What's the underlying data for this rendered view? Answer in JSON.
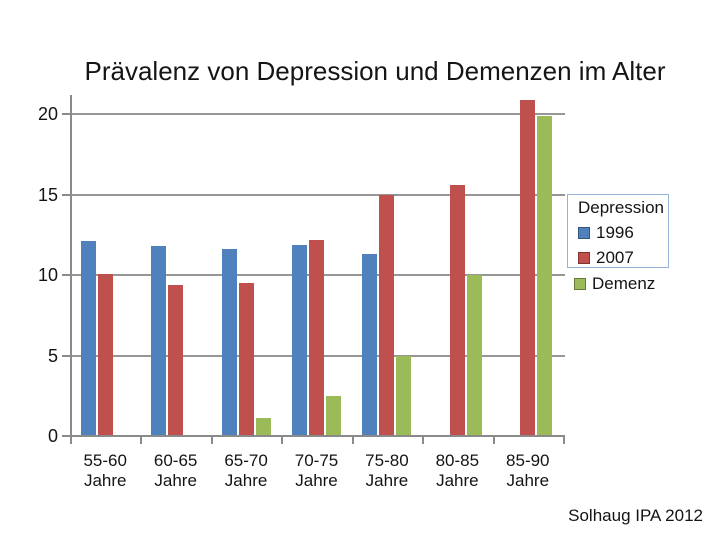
{
  "caption": "Solhaug IPA 2012",
  "legend": {
    "group_title": "Depression",
    "items": [
      {
        "label": "1996",
        "color": "#4F81BD"
      },
      {
        "label": "2007",
        "color": "#C0504D"
      }
    ],
    "demenz": {
      "label": "Demenz",
      "color": "#9BBB59"
    }
  },
  "chart_data": {
    "type": "bar",
    "title": "Prävalenz von Depression und Demenzen im Alter",
    "categories": [
      "55-60 Jahre",
      "60-65 Jahre",
      "65-70 Jahre",
      "70-75 Jahre",
      "75-80 Jahre",
      "80-85 Jahre",
      "85-90 Jahre"
    ],
    "series": [
      {
        "name": "1996",
        "color": "#4F81BD",
        "values": [
          12.1,
          11.8,
          11.6,
          11.9,
          11.3,
          null,
          null
        ]
      },
      {
        "name": "2007",
        "color": "#C0504D",
        "values": [
          10.1,
          9.4,
          9.5,
          12.2,
          15.0,
          15.6,
          20.9
        ]
      },
      {
        "name": "Demenz",
        "color": "#9BBB59",
        "values": [
          null,
          null,
          1.1,
          2.5,
          5.0,
          10.0,
          19.9
        ]
      }
    ],
    "yticks": [
      0,
      5,
      10,
      15,
      20
    ],
    "ylim": [
      0,
      21.2
    ],
    "grid": true,
    "legend_position": "right",
    "gridline_color": "#969696",
    "axis_color": "#8a8a8a"
  }
}
